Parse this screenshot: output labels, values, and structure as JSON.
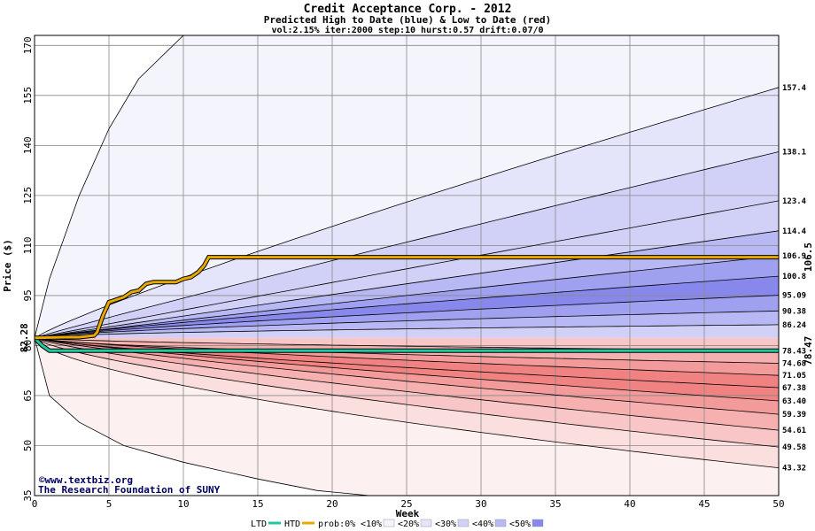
{
  "chart_data": {
    "type": "area",
    "title": "Credit Acceptance Corp. - 2012",
    "subtitle": "Predicted High to Date (blue) &  Low to Date (red)",
    "params": "vol:2.15% iter:2000 step:10 hurst:0.57 drift:0.07/0",
    "xlabel": "Week",
    "ylabel": "Price ($)",
    "xlim": [
      0,
      50
    ],
    "ylim": [
      35,
      173
    ],
    "x_ticks": [
      0,
      5,
      10,
      15,
      20,
      25,
      30,
      35,
      40,
      45,
      50
    ],
    "y_ticks": [
      35,
      50,
      65,
      80,
      95,
      110,
      125,
      140,
      155,
      170
    ],
    "grid": true,
    "start_price": 82.28,
    "start_price_label": "82.28",
    "high_to_date_value": 106.5,
    "high_to_date_label": "106.5",
    "low_to_date_value": 78.47,
    "low_to_date_label": "78.47",
    "high_percentiles": [
      {
        "label": "157.4",
        "end": 157.4,
        "mid": 123
      },
      {
        "label": "138.1",
        "end": 138.1,
        "mid": 111
      },
      {
        "label": "123.4",
        "end": 123.4,
        "mid": 103
      },
      {
        "label": "114.4",
        "end": 114.4,
        "mid": 98.5
      },
      {
        "label": "106.9",
        "end": 106.9,
        "mid": 95
      },
      {
        "label": "100.8",
        "end": 100.8,
        "mid": 92.5
      },
      {
        "label": "95.09",
        "end": 95.09,
        "mid": 89.8
      },
      {
        "label": "90.38",
        "end": 90.38,
        "mid": 87.4
      },
      {
        "label": "86.24",
        "end": 86.24,
        "mid": 85
      }
    ],
    "low_percentiles": [
      {
        "label": "78.43",
        "end": 78.43,
        "mid": 79.8
      },
      {
        "label": "74.68",
        "end": 74.68,
        "mid": 77.3
      },
      {
        "label": "71.05",
        "end": 71.05,
        "mid": 75.6
      },
      {
        "label": "67.38",
        "end": 67.38,
        "mid": 73.4
      },
      {
        "label": "63.40",
        "end": 63.4,
        "mid": 71.6
      },
      {
        "label": "59.39",
        "end": 59.39,
        "mid": 69.3
      },
      {
        "label": "54.61",
        "end": 54.61,
        "mid": 66.2
      },
      {
        "label": "49.58",
        "end": 49.58,
        "mid": 62.3
      },
      {
        "label": "43.32",
        "end": 43.32,
        "mid": 57
      }
    ],
    "outer_high_curve": [
      [
        0,
        82.28
      ],
      [
        1,
        100
      ],
      [
        3,
        125
      ],
      [
        5,
        145
      ],
      [
        7,
        160
      ],
      [
        10,
        173
      ]
    ],
    "outer_low_curve": [
      [
        0,
        82.28
      ],
      [
        1,
        65
      ],
      [
        3,
        57
      ],
      [
        6,
        50
      ],
      [
        10,
        45
      ],
      [
        15,
        40
      ],
      [
        19,
        36.5
      ],
      [
        22.5,
        35
      ]
    ],
    "high_to_date_path": [
      [
        0,
        82.3
      ],
      [
        2,
        82.5
      ],
      [
        3,
        82.5
      ],
      [
        4,
        83
      ],
      [
        4.2,
        84
      ],
      [
        4.6,
        89
      ],
      [
        5,
        93
      ],
      [
        6,
        94.5
      ],
      [
        6.5,
        96
      ],
      [
        7,
        96.5
      ],
      [
        7.5,
        98.5
      ],
      [
        8,
        99
      ],
      [
        9.5,
        99
      ],
      [
        10,
        100
      ],
      [
        10.5,
        100.5
      ],
      [
        11,
        102
      ],
      [
        11.4,
        104
      ],
      [
        11.7,
        106.5
      ],
      [
        50,
        106.5
      ]
    ],
    "low_to_date_path": [
      [
        0,
        82.28
      ],
      [
        0.5,
        80
      ],
      [
        1,
        78.47
      ],
      [
        50,
        78.47
      ]
    ],
    "colors": {
      "high_band_outer": "#f4f4fd",
      "high_band_1": "#e4e4fa",
      "high_band_2": "#d1d1f7",
      "high_band_3": "#b8b8f4",
      "high_band_4": "#a0a0f0",
      "high_band_5": "#8888ec",
      "low_band_outer": "#fdf0f0",
      "low_band_1": "#fbdede",
      "low_band_2": "#f8c6c6",
      "low_band_3": "#f6b0b0",
      "low_band_4": "#f39a9a",
      "low_band_5": "#f08282",
      "htd_line": "#e8a800",
      "ltd_line": "#20c8a0",
      "high_label": "#a07000",
      "low_label": "#108060",
      "credit_text": "#000060"
    }
  },
  "credits": {
    "line1": "©www.textbiz.org",
    "line2": "The Research Foundation of SUNY"
  },
  "legend": {
    "items": [
      {
        "label": "LTD",
        "kind": "line",
        "color": "#20c8a0"
      },
      {
        "label": "HTD",
        "kind": "line",
        "color": "#e8a800"
      },
      {
        "label": "prob:0%",
        "kind": "text",
        "color": ""
      },
      {
        "label": "<10%",
        "kind": "swatch",
        "color": "#f4f4fd"
      },
      {
        "label": "<20%",
        "kind": "swatch",
        "color": "#e4e4fa"
      },
      {
        "label": "<30%",
        "kind": "swatch",
        "color": "#d1d1f7"
      },
      {
        "label": "<40%",
        "kind": "swatch",
        "color": "#b8b8f4"
      },
      {
        "label": "<50%",
        "kind": "swatch",
        "color": "#8888ec"
      }
    ]
  }
}
